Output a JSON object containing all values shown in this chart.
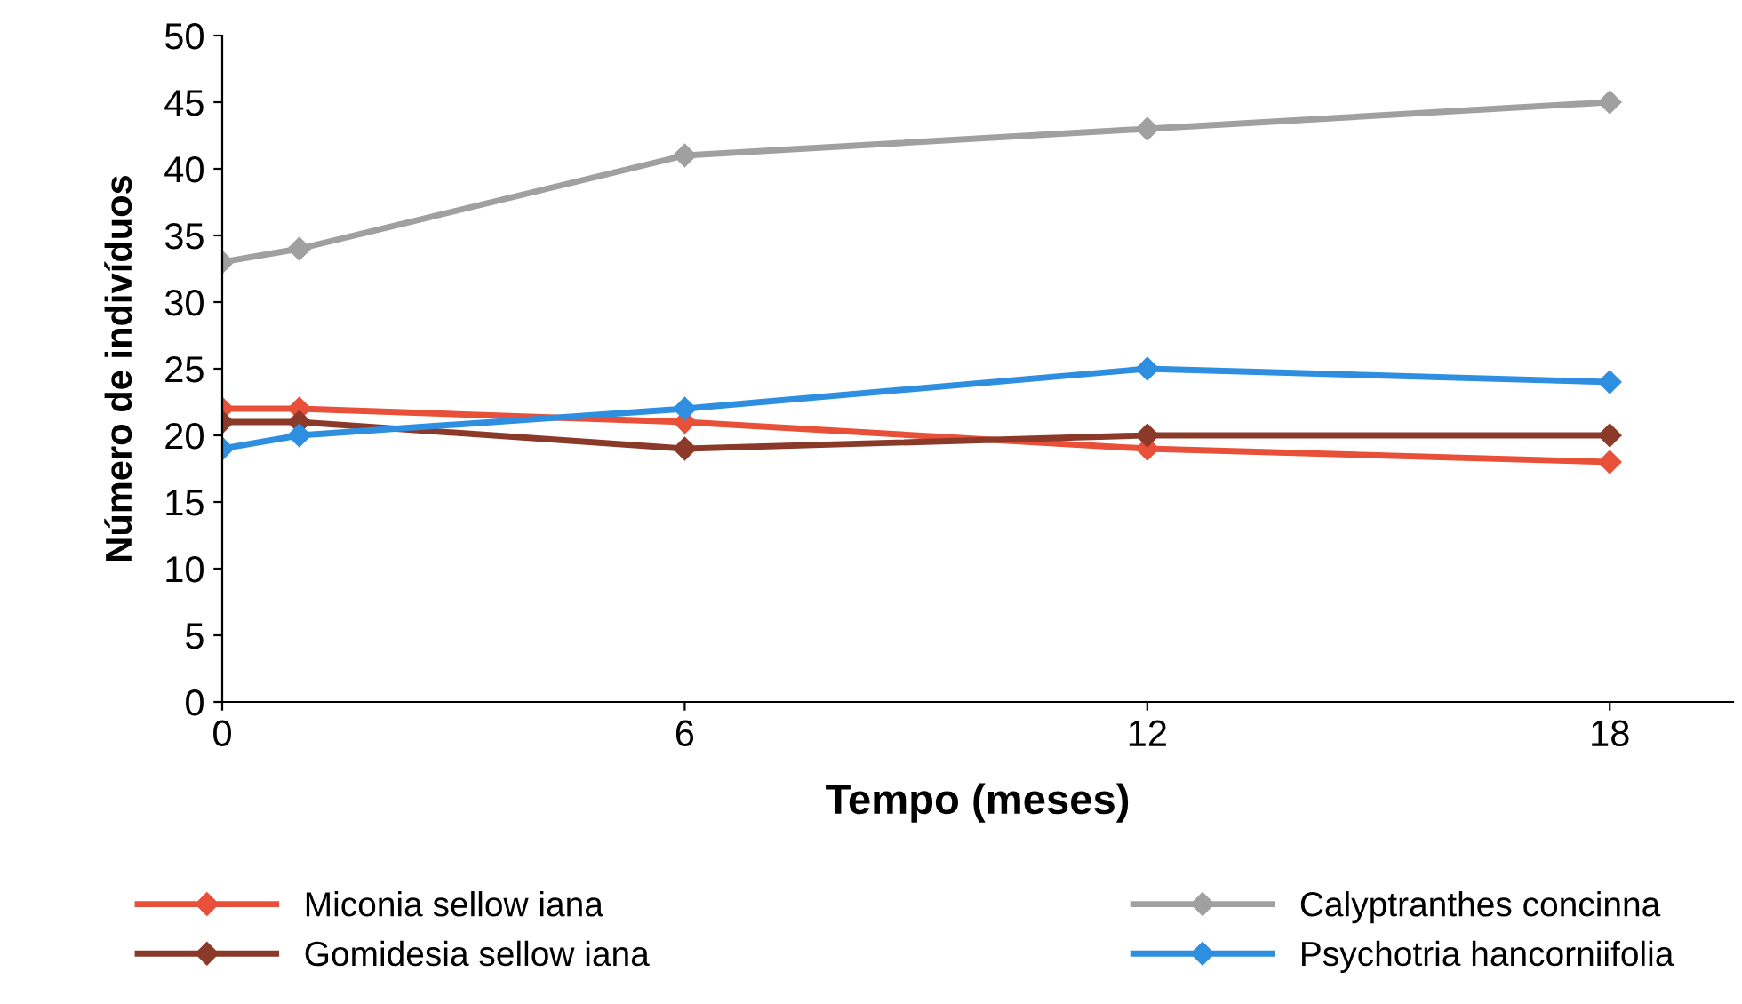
{
  "chart_data": {
    "type": "line",
    "xlabel": "Tempo (meses)",
    "ylabel": "Número de indivíduos",
    "x": [
      0,
      1,
      6,
      12,
      18
    ],
    "xlim": [
      0,
      19.6
    ],
    "xticks": [
      0,
      6,
      12,
      18
    ],
    "ylim": [
      0,
      50
    ],
    "yticks": [
      0,
      5,
      10,
      15,
      20,
      25,
      30,
      35,
      40,
      45,
      50
    ],
    "grid": false,
    "legend": "bottom",
    "marker": "diamond",
    "line_style": "solid",
    "series": [
      {
        "name": "Miconia sellow iana",
        "color": "#e8503a",
        "values": [
          22,
          22,
          21,
          19,
          18
        ]
      },
      {
        "name": "Gomidesia sellow iana",
        "color": "#8b3a2a",
        "values": [
          21,
          21,
          19,
          20,
          20
        ]
      },
      {
        "name": "Calyptranthes concinna",
        "color": "#a0a0a0",
        "values": [
          33,
          34,
          41,
          43,
          45
        ]
      },
      {
        "name": "Psychotria hancorniifolia",
        "color": "#2e8ee0",
        "values": [
          19,
          20,
          22,
          25,
          24
        ]
      }
    ]
  }
}
